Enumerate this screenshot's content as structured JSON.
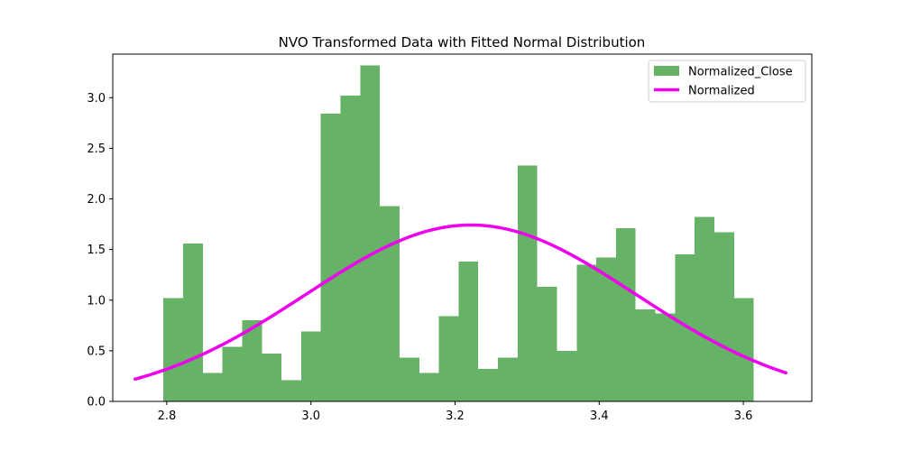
{
  "chart_data": {
    "type": "bar",
    "title": "NVO Transformed Data with Fitted Normal Distribution",
    "xlabel": "",
    "ylabel": "",
    "xlim": [
      2.725,
      3.695
    ],
    "ylim": [
      0,
      3.43
    ],
    "x_ticks": [
      2.8,
      3.0,
      3.2,
      3.4,
      3.6
    ],
    "x_tick_labels": [
      "2.8",
      "3.0",
      "3.2",
      "3.4",
      "3.6"
    ],
    "y_ticks": [
      0.0,
      0.5,
      1.0,
      1.5,
      2.0,
      2.5,
      3.0
    ],
    "y_tick_labels": [
      "0.0",
      "0.5",
      "1.0",
      "1.5",
      "2.0",
      "2.5",
      "3.0"
    ],
    "grid": false,
    "legend_position": "top-right",
    "series": [
      {
        "name": "Normalized_Close",
        "kind": "histogram",
        "color": "#66b266",
        "bins": [
          {
            "x0": 2.7954,
            "x1": 2.8227,
            "value": 1.02
          },
          {
            "x0": 2.8227,
            "x1": 2.85,
            "value": 1.56
          },
          {
            "x0": 2.85,
            "x1": 2.8773,
            "value": 0.28
          },
          {
            "x0": 2.8773,
            "x1": 2.9046,
            "value": 0.54
          },
          {
            "x0": 2.9046,
            "x1": 2.9319,
            "value": 0.8
          },
          {
            "x0": 2.9319,
            "x1": 2.9592,
            "value": 0.47
          },
          {
            "x0": 2.9592,
            "x1": 2.9865,
            "value": 0.21
          },
          {
            "x0": 2.9865,
            "x1": 3.0138,
            "value": 0.69
          },
          {
            "x0": 3.0138,
            "x1": 3.0411,
            "value": 2.84
          },
          {
            "x0": 3.0411,
            "x1": 3.0684,
            "value": 3.02
          },
          {
            "x0": 3.0684,
            "x1": 3.0957,
            "value": 3.32
          },
          {
            "x0": 3.0957,
            "x1": 3.123,
            "value": 1.93
          },
          {
            "x0": 3.123,
            "x1": 3.1503,
            "value": 0.43
          },
          {
            "x0": 3.1503,
            "x1": 3.1776,
            "value": 0.28
          },
          {
            "x0": 3.1776,
            "x1": 3.2049,
            "value": 0.84
          },
          {
            "x0": 3.2049,
            "x1": 3.2322,
            "value": 1.38
          },
          {
            "x0": 3.2322,
            "x1": 3.2595,
            "value": 0.32
          },
          {
            "x0": 3.2595,
            "x1": 3.2868,
            "value": 0.43
          },
          {
            "x0": 3.2868,
            "x1": 3.3141,
            "value": 2.33
          },
          {
            "x0": 3.3141,
            "x1": 3.3414,
            "value": 1.13
          },
          {
            "x0": 3.3414,
            "x1": 3.3687,
            "value": 0.5
          },
          {
            "x0": 3.3687,
            "x1": 3.396,
            "value": 1.35
          },
          {
            "x0": 3.396,
            "x1": 3.4233,
            "value": 1.42
          },
          {
            "x0": 3.4233,
            "x1": 3.4506,
            "value": 1.71
          },
          {
            "x0": 3.4506,
            "x1": 3.4779,
            "value": 0.91
          },
          {
            "x0": 3.4779,
            "x1": 3.5052,
            "value": 0.87
          },
          {
            "x0": 3.5052,
            "x1": 3.5325,
            "value": 1.45
          },
          {
            "x0": 3.5325,
            "x1": 3.5598,
            "value": 1.82
          },
          {
            "x0": 3.5598,
            "x1": 3.5871,
            "value": 1.67
          },
          {
            "x0": 3.5871,
            "x1": 3.6144,
            "value": 1.02
          }
        ]
      },
      {
        "name": "Normalized",
        "kind": "line",
        "color": "#ee00ee",
        "distribution": "normal",
        "mean": 3.222,
        "std": 0.229,
        "x_range": [
          2.756,
          3.659
        ]
      }
    ]
  }
}
